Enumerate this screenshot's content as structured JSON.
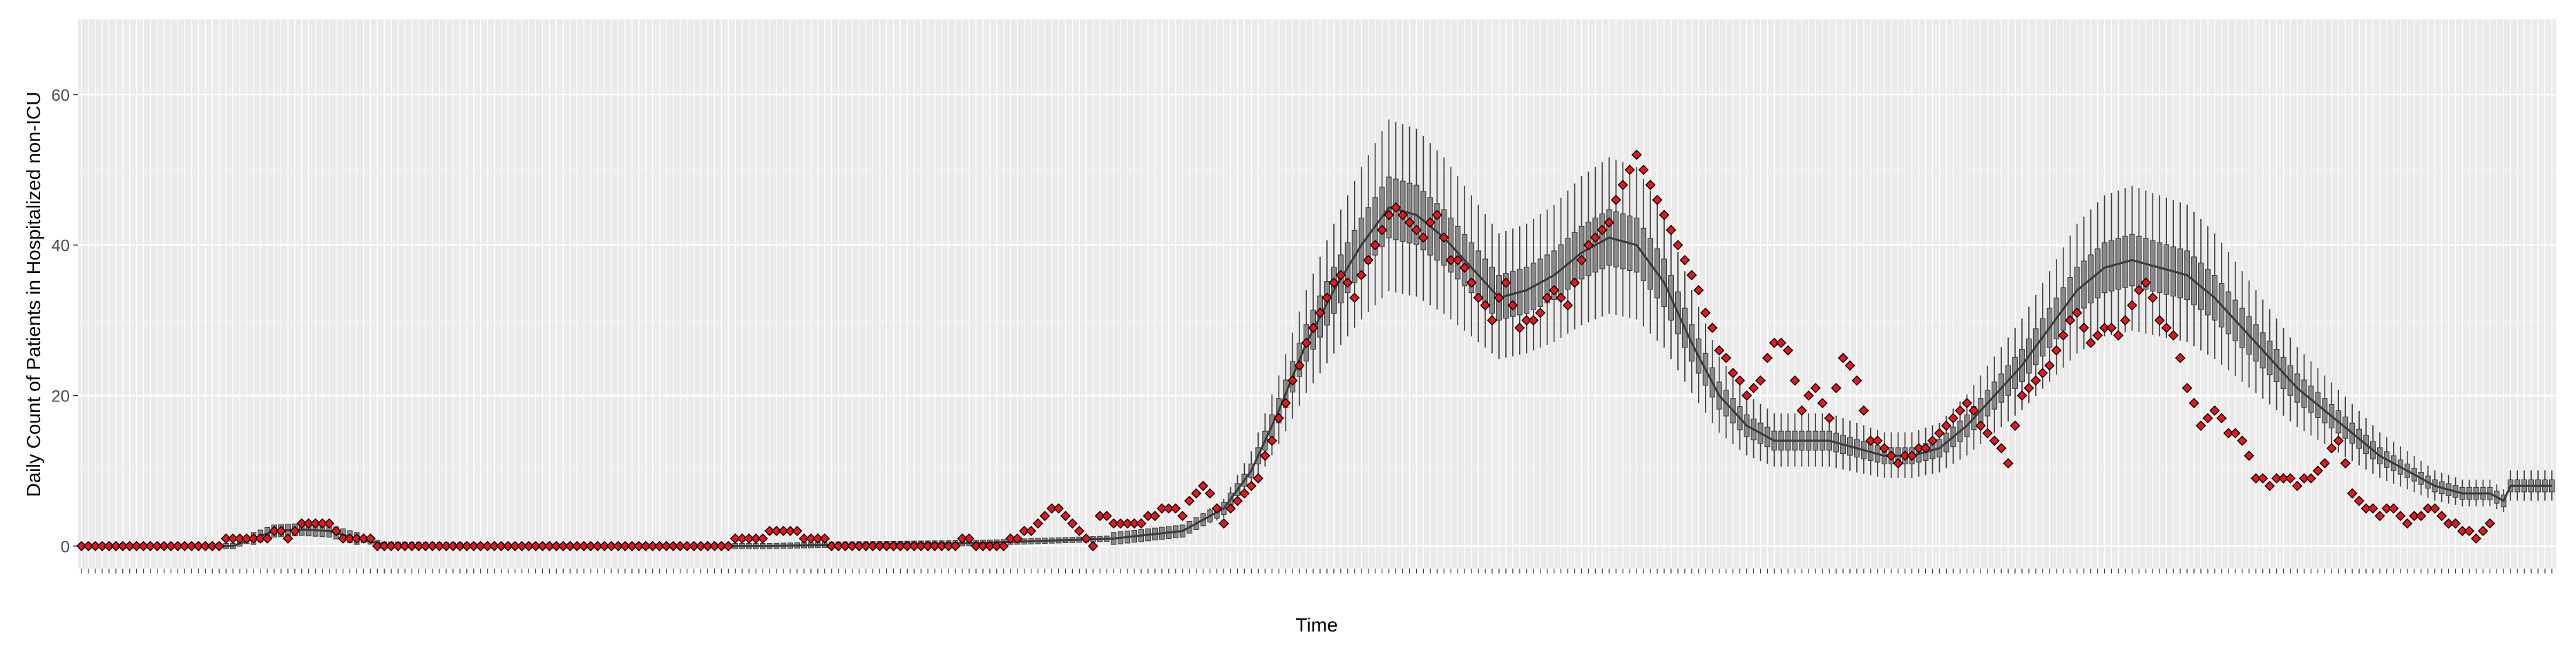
{
  "chart_data": {
    "type": "scatter",
    "title": "",
    "xlabel": "Time",
    "ylabel": "Daily Count of Patients in Hospitalized non-ICU",
    "ylim": [
      -3,
      70
    ],
    "yticks": [
      0,
      20,
      40,
      60
    ],
    "n_days": 360,
    "grid": true,
    "x_tick_labels_visible": false,
    "colors": {
      "panel": "#EBEBEB",
      "grid_major": "#FFFFFF",
      "observed_fill": "#E8151B",
      "observed_stroke": "#000000",
      "model": "#3A3A3A",
      "whisker": "#3A3A3A",
      "axis_text": "#4D4D4D",
      "axis_title": "#000000"
    },
    "observed_series": {
      "name": "",
      "points": [
        [
          0,
          0
        ],
        [
          20,
          0
        ],
        [
          21,
          1
        ],
        [
          27,
          1
        ],
        [
          28,
          2
        ],
        [
          30,
          1
        ],
        [
          32,
          3
        ],
        [
          36,
          3
        ],
        [
          38,
          1
        ],
        [
          42,
          1
        ],
        [
          43,
          0
        ],
        [
          94,
          0
        ],
        [
          95,
          1
        ],
        [
          99,
          1
        ],
        [
          100,
          2
        ],
        [
          104,
          2
        ],
        [
          105,
          1
        ],
        [
          108,
          1
        ],
        [
          109,
          0
        ],
        [
          127,
          0
        ],
        [
          128,
          1
        ],
        [
          130,
          0
        ],
        [
          134,
          0
        ],
        [
          135,
          1
        ],
        [
          138,
          2
        ],
        [
          140,
          4
        ],
        [
          142,
          5
        ],
        [
          144,
          3
        ],
        [
          146,
          1
        ],
        [
          147,
          0
        ],
        [
          148,
          4
        ],
        [
          151,
          3
        ],
        [
          153,
          3
        ],
        [
          156,
          4
        ],
        [
          158,
          5
        ],
        [
          160,
          4
        ],
        [
          161,
          6
        ],
        [
          163,
          8
        ],
        [
          165,
          5
        ],
        [
          166,
          3
        ],
        [
          168,
          6
        ],
        [
          171,
          9
        ],
        [
          173,
          14
        ],
        [
          176,
          22
        ],
        [
          179,
          29
        ],
        [
          181,
          33
        ],
        [
          183,
          36
        ],
        [
          185,
          33
        ],
        [
          187,
          38
        ],
        [
          189,
          42
        ],
        [
          191,
          45
        ],
        [
          193,
          43
        ],
        [
          195,
          41
        ],
        [
          197,
          44
        ],
        [
          199,
          38
        ],
        [
          201,
          37
        ],
        [
          203,
          33
        ],
        [
          205,
          30
        ],
        [
          207,
          35
        ],
        [
          209,
          29
        ],
        [
          212,
          31
        ],
        [
          214,
          34
        ],
        [
          216,
          32
        ],
        [
          218,
          38
        ],
        [
          220,
          41
        ],
        [
          222,
          43
        ],
        [
          224,
          48
        ],
        [
          226,
          52
        ],
        [
          228,
          48
        ],
        [
          230,
          44
        ],
        [
          232,
          40
        ],
        [
          234,
          36
        ],
        [
          236,
          31
        ],
        [
          238,
          26
        ],
        [
          240,
          23
        ],
        [
          242,
          20
        ],
        [
          244,
          22
        ],
        [
          246,
          27
        ],
        [
          248,
          26
        ],
        [
          250,
          18
        ],
        [
          252,
          21
        ],
        [
          254,
          17
        ],
        [
          256,
          25
        ],
        [
          258,
          22
        ],
        [
          260,
          14
        ],
        [
          262,
          13
        ],
        [
          264,
          11
        ],
        [
          266,
          12
        ],
        [
          268,
          13
        ],
        [
          270,
          15
        ],
        [
          272,
          17
        ],
        [
          274,
          19
        ],
        [
          276,
          16
        ],
        [
          278,
          14
        ],
        [
          280,
          11
        ],
        [
          282,
          20
        ],
        [
          284,
          22
        ],
        [
          286,
          24
        ],
        [
          288,
          28
        ],
        [
          290,
          31
        ],
        [
          292,
          27
        ],
        [
          294,
          29
        ],
        [
          296,
          28
        ],
        [
          298,
          32
        ],
        [
          300,
          35
        ],
        [
          302,
          30
        ],
        [
          304,
          28
        ],
        [
          306,
          21
        ],
        [
          308,
          16
        ],
        [
          310,
          18
        ],
        [
          312,
          15
        ],
        [
          314,
          14
        ],
        [
          316,
          9
        ],
        [
          318,
          8
        ],
        [
          320,
          9
        ],
        [
          322,
          8
        ],
        [
          324,
          9
        ],
        [
          326,
          11
        ],
        [
          328,
          14
        ],
        [
          330,
          7
        ],
        [
          332,
          5
        ],
        [
          334,
          4
        ],
        [
          336,
          5
        ],
        [
          338,
          3
        ],
        [
          340,
          4
        ],
        [
          342,
          5
        ],
        [
          344,
          3
        ],
        [
          346,
          2
        ],
        [
          348,
          1
        ],
        [
          350,
          3
        ]
      ]
    },
    "model_series": {
      "name": "",
      "points": [
        [
          0,
          0
        ],
        [
          22,
          0
        ],
        [
          25,
          1
        ],
        [
          28,
          2
        ],
        [
          32,
          2.2
        ],
        [
          36,
          2
        ],
        [
          40,
          1
        ],
        [
          44,
          0.2
        ],
        [
          60,
          0
        ],
        [
          100,
          0
        ],
        [
          110,
          0.2
        ],
        [
          130,
          0.4
        ],
        [
          150,
          1
        ],
        [
          160,
          2
        ],
        [
          166,
          5
        ],
        [
          170,
          10
        ],
        [
          174,
          18
        ],
        [
          178,
          27
        ],
        [
          182,
          34
        ],
        [
          186,
          40
        ],
        [
          190,
          45
        ],
        [
          194,
          44
        ],
        [
          198,
          41
        ],
        [
          202,
          37
        ],
        [
          206,
          33
        ],
        [
          210,
          34
        ],
        [
          214,
          36
        ],
        [
          218,
          39
        ],
        [
          222,
          41
        ],
        [
          226,
          40
        ],
        [
          230,
          35
        ],
        [
          234,
          27
        ],
        [
          238,
          20
        ],
        [
          242,
          16
        ],
        [
          246,
          14
        ],
        [
          250,
          14
        ],
        [
          254,
          14
        ],
        [
          258,
          13
        ],
        [
          262,
          12
        ],
        [
          266,
          12
        ],
        [
          270,
          13
        ],
        [
          274,
          16
        ],
        [
          278,
          20
        ],
        [
          282,
          24
        ],
        [
          286,
          29
        ],
        [
          290,
          34
        ],
        [
          294,
          37
        ],
        [
          298,
          38
        ],
        [
          302,
          37
        ],
        [
          306,
          36
        ],
        [
          310,
          33
        ],
        [
          314,
          29
        ],
        [
          318,
          25
        ],
        [
          322,
          21
        ],
        [
          326,
          18
        ],
        [
          330,
          15
        ],
        [
          334,
          12
        ],
        [
          338,
          10
        ],
        [
          342,
          8
        ],
        [
          346,
          7
        ],
        [
          350,
          7
        ],
        [
          352,
          6
        ],
        [
          353,
          8
        ],
        [
          356,
          8
        ]
      ]
    }
  }
}
